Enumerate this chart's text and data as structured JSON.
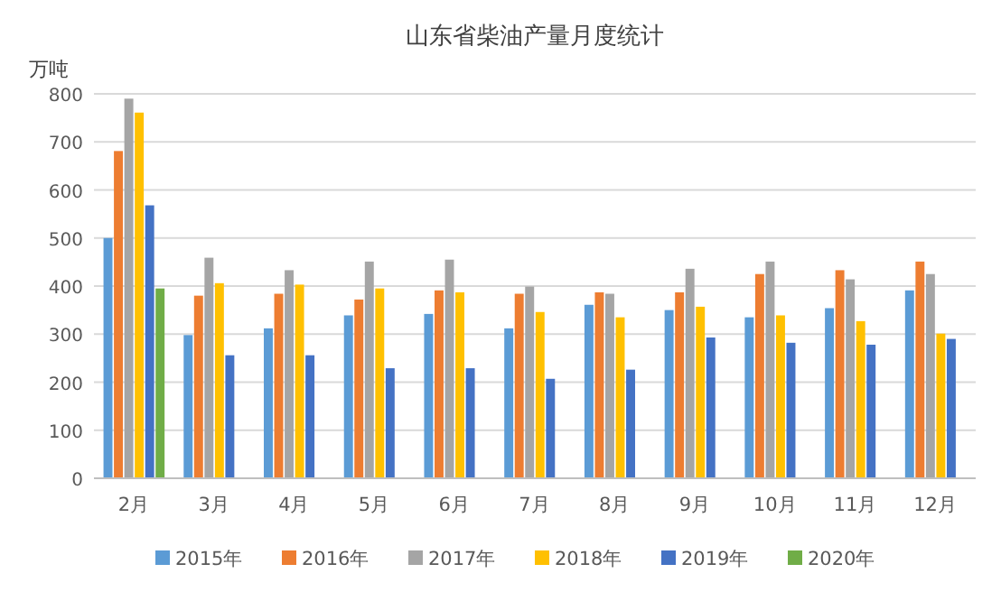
{
  "chart_data": {
    "type": "bar",
    "title": "山东省柴油产量月度统计",
    "ylabel": "万吨",
    "categories": [
      "2月",
      "3月",
      "4月",
      "5月",
      "6月",
      "7月",
      "8月",
      "9月",
      "10月",
      "11月",
      "12月"
    ],
    "series": [
      {
        "name": "2015年",
        "color": "#5b9bd5",
        "values": [
          500,
          298,
          312,
          339,
          342,
          312,
          361,
          350,
          335,
          354,
          391
        ]
      },
      {
        "name": "2016年",
        "color": "#ed7d31",
        "values": [
          681,
          380,
          384,
          372,
          391,
          384,
          387,
          387,
          425,
          433,
          451
        ]
      },
      {
        "name": "2017年",
        "color": "#a5a5a5",
        "values": [
          790,
          459,
          433,
          451,
          455,
          399,
          384,
          436,
          451,
          414,
          425
        ]
      },
      {
        "name": "2018年",
        "color": "#ffc000",
        "values": [
          761,
          406,
          403,
          395,
          387,
          346,
          335,
          357,
          339,
          327,
          301
        ]
      },
      {
        "name": "2019年",
        "color": "#4472c4",
        "values": [
          568,
          256,
          256,
          229,
          229,
          207,
          226,
          293,
          282,
          278,
          290
        ]
      },
      {
        "name": "2020年",
        "color": "#70ad47",
        "values": [
          395,
          null,
          null,
          null,
          null,
          null,
          null,
          null,
          null,
          null,
          null
        ]
      }
    ],
    "ylim": [
      0,
      800
    ],
    "yticks": [
      0,
      100,
      200,
      300,
      400,
      500,
      600,
      700,
      800
    ],
    "grid": "y",
    "legend": "bottom"
  }
}
